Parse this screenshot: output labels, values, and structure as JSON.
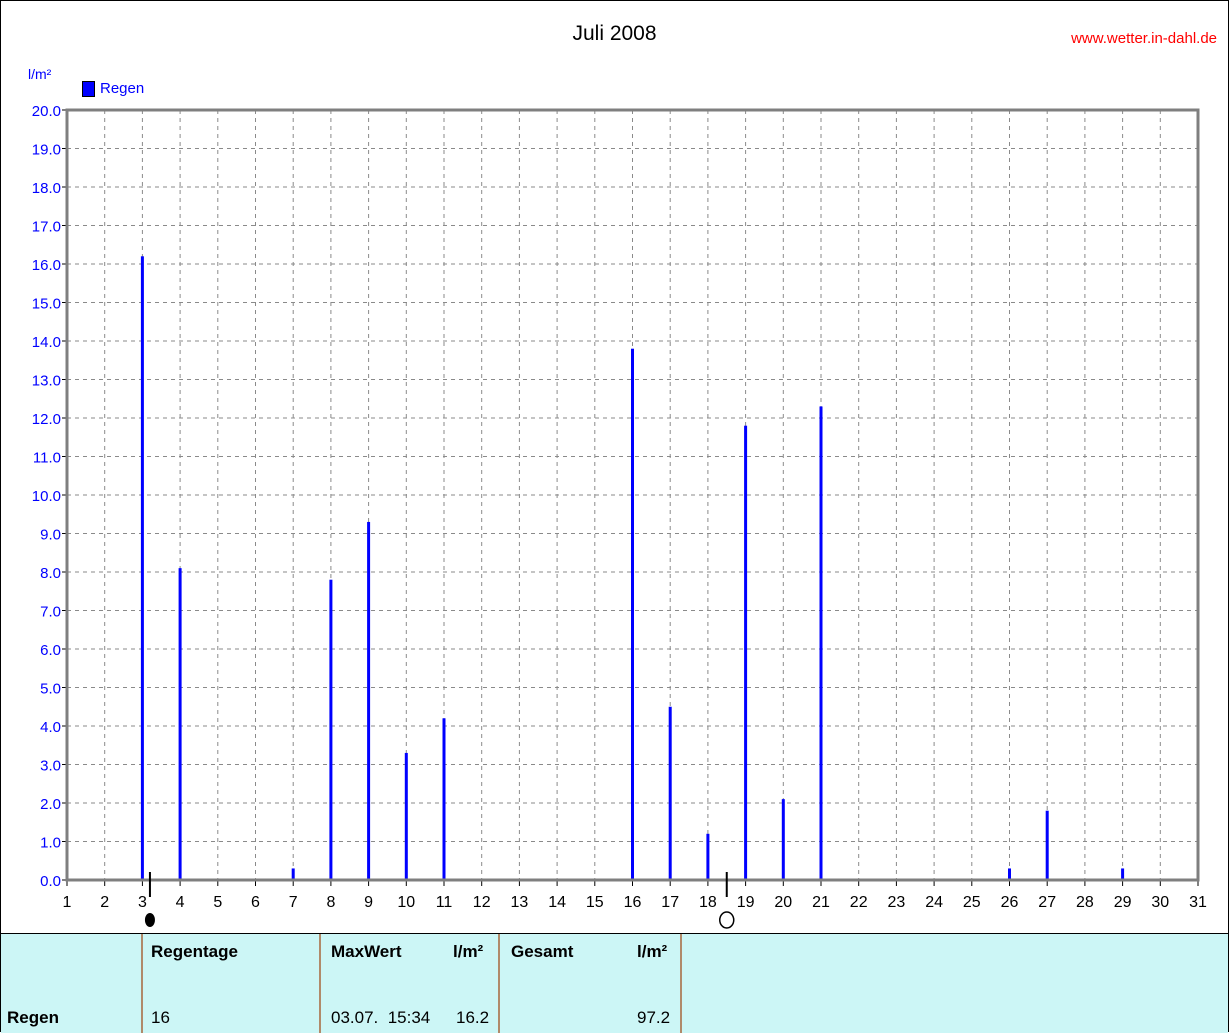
{
  "header": {
    "title": "Juli 2008",
    "site": "www.wetter.in-dahl.de"
  },
  "chart_data": {
    "type": "bar",
    "ylabel": "l/m²",
    "ylim": [
      0,
      20
    ],
    "ytick_step": 1,
    "xlim": [
      1,
      31
    ],
    "grid": true,
    "legend": "top-left",
    "series": [
      {
        "name": "Regen",
        "color": "#0000ff",
        "points": [
          {
            "x": 3,
            "y": 16.2
          },
          {
            "x": 4,
            "y": 8.1
          },
          {
            "x": 7,
            "y": 0.3
          },
          {
            "x": 8,
            "y": 7.8
          },
          {
            "x": 9,
            "y": 9.3
          },
          {
            "x": 10,
            "y": 3.3
          },
          {
            "x": 11,
            "y": 4.2
          },
          {
            "x": 16,
            "y": 13.8
          },
          {
            "x": 17,
            "y": 4.5
          },
          {
            "x": 18,
            "y": 1.2
          },
          {
            "x": 19,
            "y": 11.8
          },
          {
            "x": 20,
            "y": 2.1
          },
          {
            "x": 21,
            "y": 12.3
          },
          {
            "x": 26,
            "y": 0.3
          },
          {
            "x": 27,
            "y": 1.8
          },
          {
            "x": 29,
            "y": 0.3
          }
        ]
      }
    ],
    "moon_phases": [
      {
        "day": 3.2,
        "phase": "new-moon"
      },
      {
        "day": 18.5,
        "phase": "full-moon"
      }
    ]
  },
  "table": {
    "row_label": "Regen",
    "regentage_header": "Regentage",
    "regentage_value": "16",
    "maxwert_header": "MaxWert",
    "maxwert_unit": "l/m²",
    "maxwert_date": "03.07.  15:34",
    "maxwert_value": "16.2",
    "gesamt_header": "Gesamt",
    "gesamt_unit": "l/m²",
    "gesamt_value": "97.2"
  }
}
